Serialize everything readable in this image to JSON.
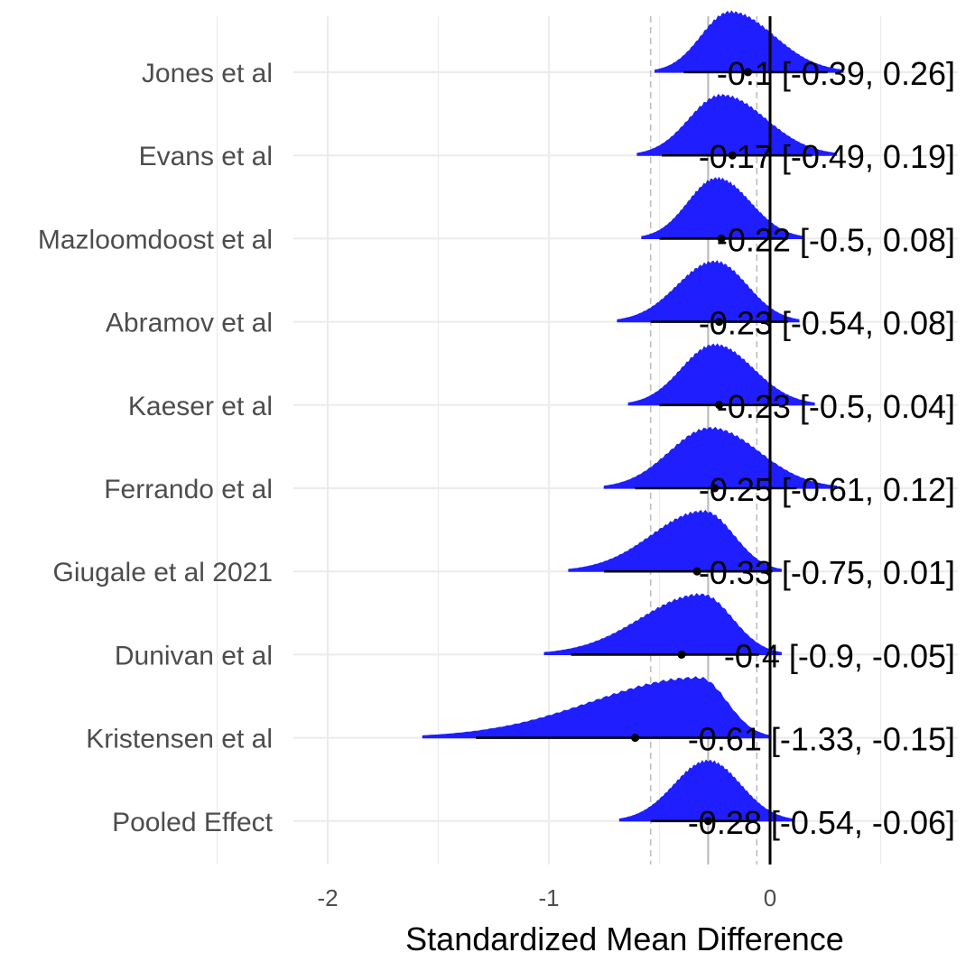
{
  "chart_data": {
    "type": "forest",
    "title": "",
    "xlabel": "Standardized Mean Difference",
    "ylabel": "",
    "xlim": [
      -2.5,
      0.85
    ],
    "xticks": [
      -2,
      -1,
      0
    ],
    "xtick_labels": [
      "-2",
      "-1",
      "0"
    ],
    "grid": true,
    "pooled_reference": -0.28,
    "pooled_ci_lines": [
      -0.54,
      -0.06
    ],
    "studies": [
      {
        "name": "Jones et al",
        "estimate": -0.1,
        "lower": -0.39,
        "upper": 0.26,
        "label": "-0.1 [-0.39, 0.26]",
        "mode": -0.18,
        "left_tail": -0.52,
        "right_tail": 0.33
      },
      {
        "name": "Evans et al",
        "estimate": -0.17,
        "lower": -0.49,
        "upper": 0.19,
        "label": "-0.17 [-0.49, 0.19]",
        "mode": -0.22,
        "left_tail": -0.6,
        "right_tail": 0.3
      },
      {
        "name": "Mazloomdoost et al",
        "estimate": -0.22,
        "lower": -0.5,
        "upper": 0.08,
        "label": "-0.22 [-0.5, 0.08]",
        "mode": -0.24,
        "left_tail": -0.58,
        "right_tail": 0.15
      },
      {
        "name": "Abramov et al",
        "estimate": -0.23,
        "lower": -0.54,
        "upper": 0.08,
        "label": "-0.23 [-0.54, 0.08]",
        "mode": -0.25,
        "left_tail": -0.69,
        "right_tail": 0.13
      },
      {
        "name": "Kaeser et al",
        "estimate": -0.23,
        "lower": -0.5,
        "upper": 0.04,
        "label": "-0.23 [-0.5, 0.04]",
        "mode": -0.25,
        "left_tail": -0.64,
        "right_tail": 0.2
      },
      {
        "name": "Ferrando et al",
        "estimate": -0.25,
        "lower": -0.61,
        "upper": 0.12,
        "label": "-0.25 [-0.61, 0.12]",
        "mode": -0.27,
        "left_tail": -0.75,
        "right_tail": 0.3
      },
      {
        "name": "Giugale et al  2021",
        "estimate": -0.33,
        "lower": -0.75,
        "upper": 0.01,
        "label": "-0.33 [-0.75, 0.01]",
        "mode": -0.3,
        "left_tail": -0.91,
        "right_tail": 0.05
      },
      {
        "name": "Dunivan et al",
        "estimate": -0.4,
        "lower": -0.9,
        "upper": -0.05,
        "label": "-0.4 [-0.9, -0.05]",
        "mode": -0.31,
        "left_tail": -1.02,
        "right_tail": 0.05
      },
      {
        "name": "Kristensen et al",
        "estimate": -0.61,
        "lower": -1.33,
        "upper": -0.15,
        "label": "-0.61 [-1.33, -0.15]",
        "mode": -0.32,
        "left_tail": -1.57,
        "right_tail": 0.0
      },
      {
        "name": "Pooled Effect",
        "estimate": -0.28,
        "lower": -0.54,
        "upper": -0.06,
        "label": "-0.28 [-0.54, -0.06]",
        "mode": -0.28,
        "left_tail": -0.68,
        "right_tail": 0.1
      }
    ]
  },
  "colors": {
    "density_fill": "#1e1eff",
    "ci_line": "#000000",
    "zero_line": "#000000",
    "pooled_line": "#bdbdbd",
    "pooled_ci_dash": "#bdbdbd",
    "grid": "#ebebeb",
    "label_text": "#4d4d4d"
  }
}
